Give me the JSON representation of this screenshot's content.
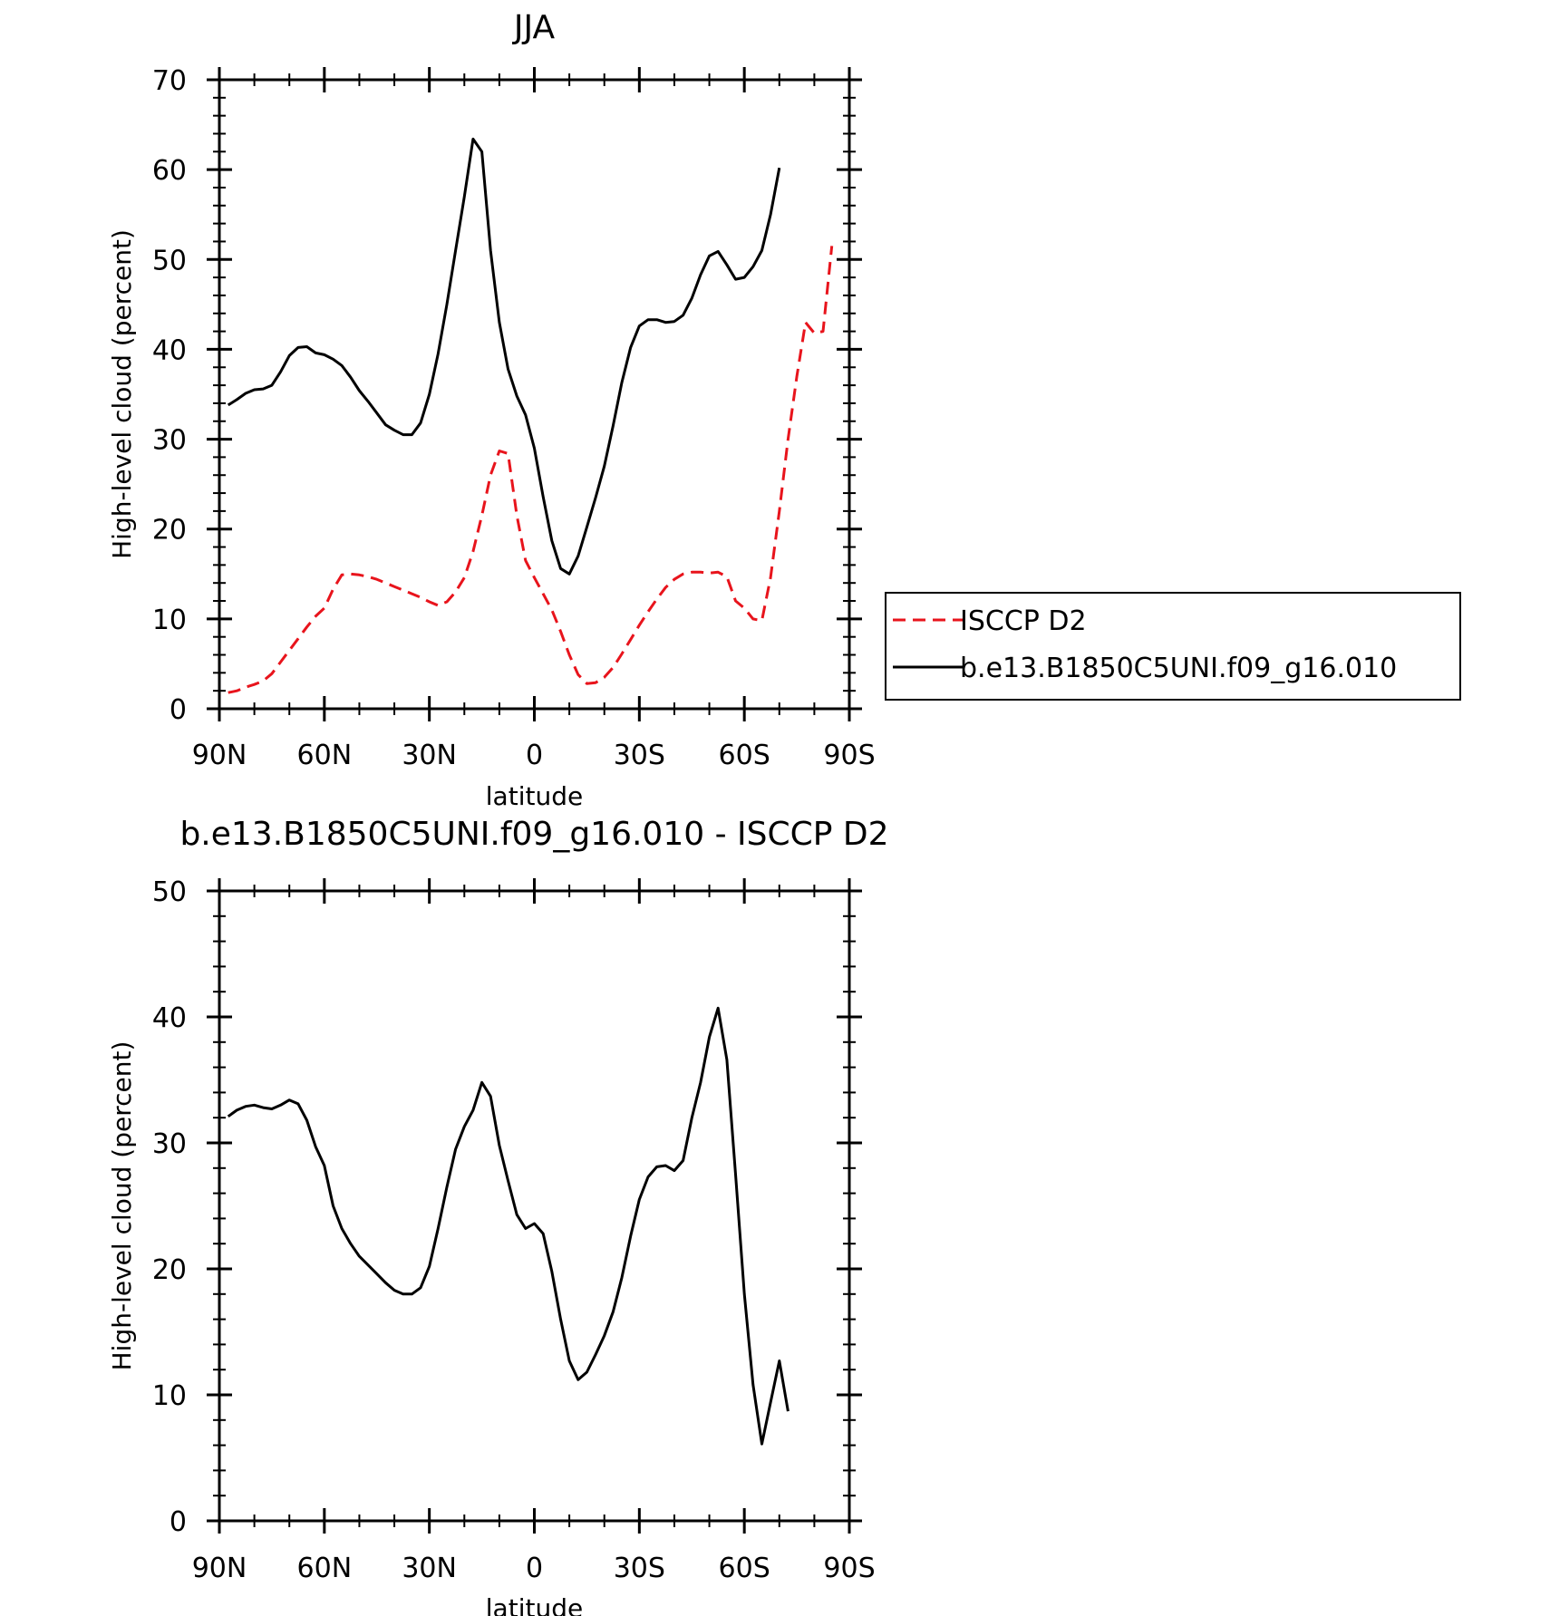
{
  "chart_data": [
    {
      "type": "line",
      "title": "JJA",
      "xlabel": "latitude",
      "ylabel": "High-level cloud (percent)",
      "xlim": [
        90,
        -90
      ],
      "ylim": [
        0,
        70
      ],
      "yticks": [
        0,
        10,
        20,
        30,
        40,
        50,
        60,
        70
      ],
      "xticks": [
        90,
        60,
        30,
        0,
        -30,
        -60,
        -90
      ],
      "xtick_labels": [
        "90N",
        "60N",
        "30N",
        "0",
        "30S",
        "60S",
        "90S"
      ],
      "legend": {
        "placement": "right",
        "entries": [
          "ISCCP D2",
          "b.e13.B1850C5UNI.f09_g16.010"
        ]
      },
      "series": [
        {
          "name": "ISCCP D2",
          "color": "#e8141c",
          "dash": true,
          "points": [
            [
              87.5,
              1.8
            ],
            [
              85,
              2
            ],
            [
              82.5,
              2.4
            ],
            [
              80,
              2.7
            ],
            [
              77.5,
              3.1
            ],
            [
              75,
              3.9
            ],
            [
              72.5,
              5.2
            ],
            [
              70,
              6.5
            ],
            [
              67.5,
              7.8
            ],
            [
              65,
              9.1
            ],
            [
              62.5,
              10.3
            ],
            [
              60,
              11.2
            ],
            [
              57.5,
              13.3
            ],
            [
              55,
              14.9
            ],
            [
              52.5,
              15
            ],
            [
              50,
              14.9
            ],
            [
              47.5,
              14.7
            ],
            [
              45,
              14.4
            ],
            [
              42.5,
              14
            ],
            [
              40,
              13.6
            ],
            [
              37.5,
              13.2
            ],
            [
              35,
              12.8
            ],
            [
              32.5,
              12.4
            ],
            [
              30,
              11.9
            ],
            [
              27.5,
              11.5
            ],
            [
              25,
              11.9
            ],
            [
              22.5,
              13
            ],
            [
              20,
              14.6
            ],
            [
              17.5,
              17.5
            ],
            [
              15,
              21.5
            ],
            [
              12.5,
              26
            ],
            [
              10,
              28.7
            ],
            [
              7.5,
              28.4
            ],
            [
              5,
              21.5
            ],
            [
              2.5,
              16.5
            ],
            [
              0,
              14.6
            ],
            [
              -2.5,
              12.8
            ],
            [
              -5,
              11
            ],
            [
              -7.5,
              8.6
            ],
            [
              -10,
              6
            ],
            [
              -12.5,
              3.8
            ],
            [
              -15,
              2.8
            ],
            [
              -17.5,
              2.9
            ],
            [
              -20,
              3.5
            ],
            [
              -22.5,
              4.6
            ],
            [
              -25,
              6.1
            ],
            [
              -27.5,
              7.7
            ],
            [
              -30,
              9.3
            ],
            [
              -32.5,
              10.8
            ],
            [
              -35,
              12.2
            ],
            [
              -37.5,
              13.5
            ],
            [
              -40,
              14.4
            ],
            [
              -42.5,
              15
            ],
            [
              -45,
              15.2
            ],
            [
              -47.5,
              15.2
            ],
            [
              -50,
              15.1
            ],
            [
              -52.5,
              15.2
            ],
            [
              -55,
              14.7
            ],
            [
              -57.5,
              12
            ],
            [
              -60,
              11.2
            ],
            [
              -62.5,
              10
            ],
            [
              -65,
              9.8
            ],
            [
              -67.5,
              14.6
            ],
            [
              -70,
              22
            ],
            [
              -72.5,
              30
            ],
            [
              -75,
              37
            ],
            [
              -77.5,
              43
            ],
            [
              -80,
              41.8
            ],
            [
              -82.5,
              42
            ],
            [
              -85,
              51.5
            ]
          ]
        },
        {
          "name": "b.e13.B1850C5UNI.f09_g16.010",
          "color": "#000000",
          "dash": false,
          "points": [
            [
              87.5,
              33.8
            ],
            [
              85,
              34.4
            ],
            [
              82.5,
              35.1
            ],
            [
              80,
              35.5
            ],
            [
              77.5,
              35.6
            ],
            [
              75,
              36
            ],
            [
              72.5,
              37.5
            ],
            [
              70,
              39.3
            ],
            [
              67.5,
              40.2
            ],
            [
              65,
              40.3
            ],
            [
              62.5,
              39.6
            ],
            [
              60,
              39.4
            ],
            [
              57.5,
              38.9
            ],
            [
              55,
              38.2
            ],
            [
              52.5,
              36.9
            ],
            [
              50,
              35.4
            ],
            [
              47.5,
              34.2
            ],
            [
              45,
              32.9
            ],
            [
              42.5,
              31.6
            ],
            [
              40,
              31
            ],
            [
              37.5,
              30.5
            ],
            [
              35,
              30.5
            ],
            [
              32.5,
              31.8
            ],
            [
              30,
              35
            ],
            [
              27.5,
              39.5
            ],
            [
              25,
              45
            ],
            [
              22.5,
              51
            ],
            [
              20,
              57
            ],
            [
              17.5,
              63.4
            ],
            [
              15,
              62
            ],
            [
              12.5,
              51
            ],
            [
              10,
              43
            ],
            [
              7.5,
              37.8
            ],
            [
              5,
              34.8
            ],
            [
              2.5,
              32.7
            ],
            [
              0,
              29
            ],
            [
              -2.5,
              23.6
            ],
            [
              -5,
              18.7
            ],
            [
              -7.5,
              15.6
            ],
            [
              -10,
              15
            ],
            [
              -12.5,
              17
            ],
            [
              -15,
              20.2
            ],
            [
              -17.5,
              23.5
            ],
            [
              -20,
              27
            ],
            [
              -22.5,
              31.5
            ],
            [
              -25,
              36.3
            ],
            [
              -27.5,
              40.2
            ],
            [
              -30,
              42.6
            ],
            [
              -32.5,
              43.3
            ],
            [
              -35,
              43.3
            ],
            [
              -37.5,
              43
            ],
            [
              -40,
              43.1
            ],
            [
              -42.5,
              43.8
            ],
            [
              -45,
              45.7
            ],
            [
              -47.5,
              48.3
            ],
            [
              -50,
              50.4
            ],
            [
              -52.5,
              50.9
            ],
            [
              -55,
              49.4
            ],
            [
              -57.5,
              47.8
            ],
            [
              -60,
              48
            ],
            [
              -62.5,
              49.2
            ],
            [
              -65,
              51
            ],
            [
              -67.5,
              55
            ],
            [
              -70,
              60.2
            ]
          ]
        }
      ]
    },
    {
      "type": "line",
      "title": "b.e13.B1850C5UNI.f09_g16.010 - ISCCP D2",
      "xlabel": "latitude",
      "ylabel": "High-level cloud (percent)",
      "xlim": [
        90,
        -90
      ],
      "ylim": [
        0,
        50
      ],
      "yticks": [
        0,
        10,
        20,
        30,
        40,
        50
      ],
      "xticks": [
        90,
        60,
        30,
        0,
        -30,
        -60,
        -90
      ],
      "xtick_labels": [
        "90N",
        "60N",
        "30N",
        "0",
        "30S",
        "60S",
        "90S"
      ],
      "series": [
        {
          "color": "#000000",
          "dash": false,
          "points": [
            [
              87.5,
              32.1
            ],
            [
              85,
              32.6
            ],
            [
              82.5,
              32.9
            ],
            [
              80,
              33
            ],
            [
              77.5,
              32.8
            ],
            [
              75,
              32.7
            ],
            [
              72.5,
              33
            ],
            [
              70,
              33.4
            ],
            [
              67.5,
              33.1
            ],
            [
              65,
              31.8
            ],
            [
              62.5,
              29.7
            ],
            [
              60,
              28.2
            ],
            [
              57.5,
              25
            ],
            [
              55,
              23.2
            ],
            [
              52.5,
              22
            ],
            [
              50,
              21
            ],
            [
              47.5,
              20.3
            ],
            [
              45,
              19.6
            ],
            [
              42.5,
              18.9
            ],
            [
              40,
              18.3
            ],
            [
              37.5,
              18
            ],
            [
              35,
              18
            ],
            [
              32.5,
              18.5
            ],
            [
              30,
              20.2
            ],
            [
              27.5,
              23.2
            ],
            [
              25,
              26.5
            ],
            [
              22.5,
              29.5
            ],
            [
              20,
              31.3
            ],
            [
              17.5,
              32.6
            ],
            [
              15,
              34.8
            ],
            [
              12.5,
              33.7
            ],
            [
              10,
              29.8
            ],
            [
              7.5,
              27
            ],
            [
              5,
              24.3
            ],
            [
              2.5,
              23.2
            ],
            [
              0,
              23.6
            ],
            [
              -2.5,
              22.8
            ],
            [
              -5,
              19.8
            ],
            [
              -7.5,
              16
            ],
            [
              -10,
              12.7
            ],
            [
              -12.5,
              11.2
            ],
            [
              -15,
              11.8
            ],
            [
              -17.5,
              13.2
            ],
            [
              -20,
              14.7
            ],
            [
              -22.5,
              16.6
            ],
            [
              -25,
              19.3
            ],
            [
              -27.5,
              22.6
            ],
            [
              -30,
              25.5
            ],
            [
              -32.5,
              27.3
            ],
            [
              -35,
              28.1
            ],
            [
              -37.5,
              28.2
            ],
            [
              -40,
              27.8
            ],
            [
              -42.5,
              28.6
            ],
            [
              -45,
              32
            ],
            [
              -47.5,
              34.8
            ],
            [
              -50,
              38.4
            ],
            [
              -52.5,
              40.7
            ],
            [
              -55,
              36.6
            ],
            [
              -57.5,
              27.5
            ],
            [
              -60,
              18
            ],
            [
              -62.5,
              10.8
            ],
            [
              -65,
              6.1
            ],
            [
              -67.5,
              9.4
            ],
            [
              -70,
              12.7
            ],
            [
              -72.5,
              8.7
            ]
          ]
        }
      ]
    }
  ]
}
